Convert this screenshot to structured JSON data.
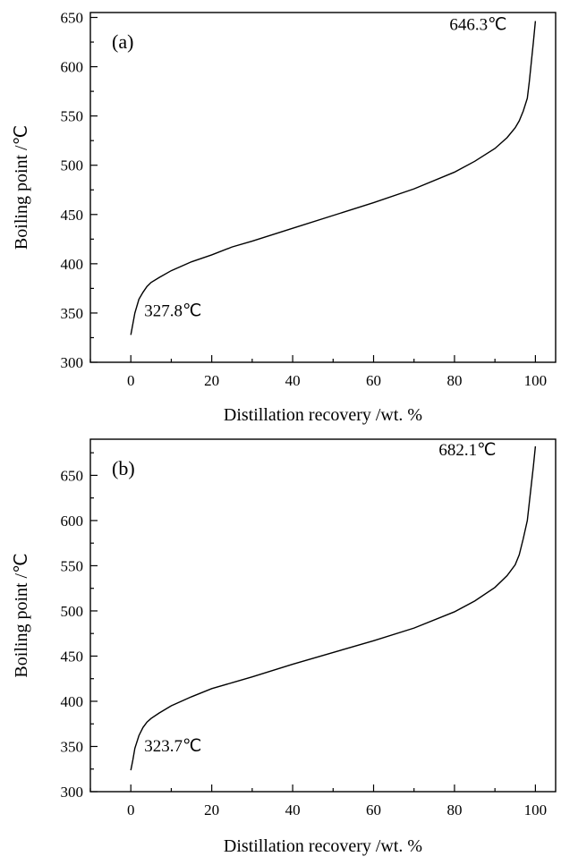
{
  "chart_data": [
    {
      "type": "line",
      "panel_label": "(a)",
      "xlabel": "Distillation recovery /wt. %",
      "ylabel": "Boiling point /℃",
      "xlim": [
        -10,
        105
      ],
      "ylim": [
        300,
        655
      ],
      "xticks": [
        0,
        20,
        40,
        60,
        80,
        100
      ],
      "yticks": [
        300,
        350,
        400,
        450,
        500,
        550,
        600,
        650
      ],
      "grid": false,
      "annotations": [
        {
          "text": "327.8℃",
          "x": 0,
          "y": 327.8
        },
        {
          "text": "646.3℃",
          "x": 100,
          "y": 646.3
        }
      ],
      "series": [
        {
          "x": [
            0,
            1,
            2,
            3,
            4,
            5,
            7,
            10,
            15,
            20,
            25,
            30,
            40,
            50,
            60,
            70,
            80,
            85,
            90,
            93,
            95,
            96,
            97,
            98,
            98.5,
            99,
            99.5,
            100
          ],
          "y": [
            327.8,
            350,
            364,
            371,
            377,
            381,
            386,
            393,
            402,
            409,
            417,
            423,
            436,
            449,
            462,
            476,
            493,
            504,
            517,
            528,
            538,
            545,
            555,
            568,
            585,
            605,
            625,
            646.3
          ]
        }
      ]
    },
    {
      "type": "line",
      "panel_label": "(b)",
      "xlabel": "Distillation recovery /wt. %",
      "ylabel": "Boiling point /℃",
      "xlim": [
        -10,
        105
      ],
      "ylim": [
        300,
        690
      ],
      "xticks": [
        0,
        20,
        40,
        60,
        80,
        100
      ],
      "yticks": [
        300,
        350,
        400,
        450,
        500,
        550,
        600,
        650
      ],
      "grid": false,
      "annotations": [
        {
          "text": "323.7℃",
          "x": 0,
          "y": 323.7
        },
        {
          "text": "682.1℃",
          "x": 100,
          "y": 682.1
        }
      ],
      "series": [
        {
          "x": [
            0,
            0.5,
            1,
            2,
            3,
            4,
            5,
            7,
            10,
            15,
            20,
            30,
            40,
            50,
            60,
            70,
            80,
            85,
            90,
            93,
            95,
            96,
            97,
            98,
            98.5,
            99,
            99.5,
            100
          ],
          "y": [
            323.7,
            335,
            348,
            362,
            371,
            377,
            381,
            387,
            395,
            405,
            414,
            427,
            441,
            454,
            467,
            481,
            499,
            511,
            526,
            539,
            551,
            562,
            580,
            600,
            620,
            640,
            660,
            682.1
          ]
        }
      ]
    }
  ]
}
